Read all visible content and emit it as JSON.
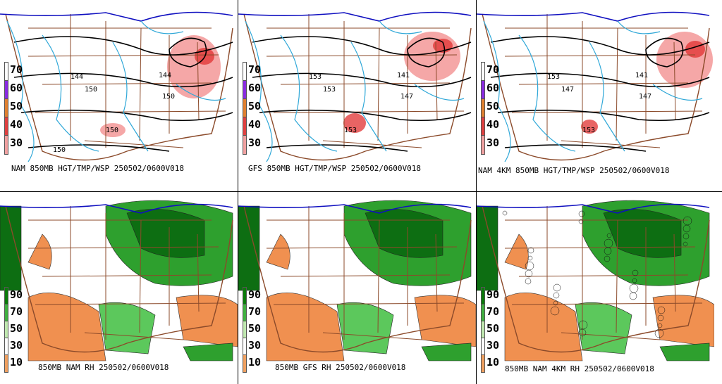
{
  "panels_top": [
    {
      "id": "nam",
      "caption": "NAM 850MB HGT/TMP/WSP 250502/0600V018",
      "hlabels": [
        "144",
        "150",
        "150",
        "150",
        "144",
        "150"
      ]
    },
    {
      "id": "gfs",
      "caption": "GFS 850MB HGT/TMP/WSP 250502/0600V018",
      "hlabels": [
        "153",
        "153",
        "147",
        "153",
        "141"
      ]
    },
    {
      "id": "nam4km",
      "caption": "NAM 4KM 850MB HGT/TMP/WSP 250502/0600V018",
      "hlabels": [
        "153",
        "147",
        "147",
        "153",
        "141"
      ]
    }
  ],
  "panels_bottom": [
    {
      "id": "nam-rh",
      "caption": "850MB NAM RH 250502/0600V018"
    },
    {
      "id": "gfs-rh",
      "caption": "850MB GFS RH 250502/0600V018"
    },
    {
      "id": "nam4km-rh",
      "caption": "850MB NAM 4KM RH 250502/0600V018"
    }
  ],
  "wind_legend": {
    "ticks": [
      "70",
      "60",
      "50",
      "40",
      "30"
    ],
    "colors": [
      "#ffffff",
      "#8a2be2",
      "#e08030",
      "#e04040",
      "#f0a0a0"
    ]
  },
  "rh_legend": {
    "ticks": [
      "90",
      "70",
      "50",
      "30",
      "10"
    ],
    "colors": [
      "#0a7a0a",
      "#40b040",
      "#c0e8b0",
      "#ffffff",
      "#f0a060"
    ]
  },
  "colors": {
    "height": "#000000",
    "temp": "#30a8d8",
    "borders": "#8b4a2a",
    "coast": "#1010c0",
    "wind": "#f28a8a",
    "wind_core": "#e03030",
    "rh_dark": "#0d6e12",
    "rh_mid": "#2ea02e",
    "rh_light": "#5cc85c",
    "rh_dry": "#f09050"
  }
}
